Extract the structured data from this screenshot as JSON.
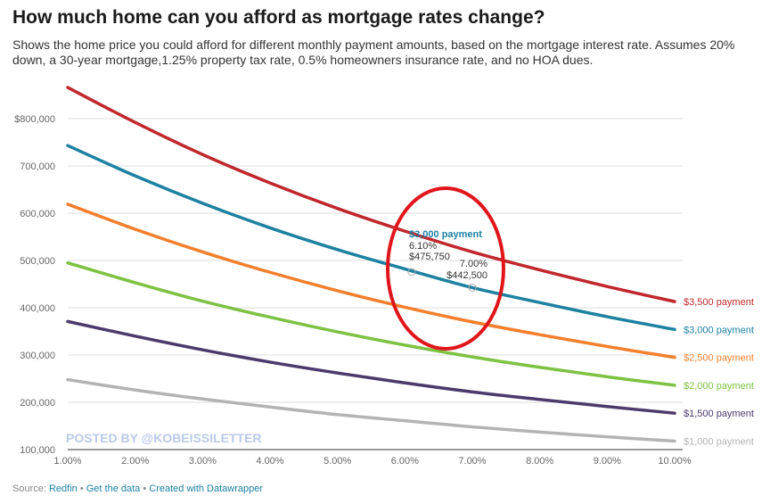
{
  "title": "How much home can you afford as mortgage rates change?",
  "subtitle": "Shows the home price you could afford for different monthly payment amounts, based on the mortgage interest rate. Assumes 20% down, a 30-year mortgage,1.25% property tax rate, 0.5% homeowners insurance rate, and no HOA dues.",
  "footer": {
    "source_label": "Source: ",
    "source": "Redfin",
    "sep1": " • ",
    "get_data": "Get the data",
    "sep2": " • ",
    "created": "Created with Datawrapper"
  },
  "watermark": "POSTED BY @KOBEISSILETTER",
  "highlight_color": "#e0161b",
  "chart_data": {
    "type": "line",
    "x": [
      1,
      2,
      3,
      4,
      5,
      6,
      7,
      8,
      9,
      10
    ],
    "x_tick_labels": [
      "1.00%",
      "2.00%",
      "3.00%",
      "4.00%",
      "5.00%",
      "6.00%",
      "7.00%",
      "8.00%",
      "9.00%",
      "10.00%"
    ],
    "xlim": [
      1,
      10
    ],
    "y_ticks": [
      100000,
      200000,
      300000,
      400000,
      500000,
      600000,
      700000,
      800000
    ],
    "y_tick_labels": [
      "100,000",
      "200,000",
      "300,000",
      "400,000",
      "500,000",
      "600,000",
      "700,000",
      "$800,000"
    ],
    "ylim": [
      100000,
      800000
    ],
    "grid": true,
    "series": [
      {
        "name": "$3,500 payment",
        "color": "#c0272d",
        "values": [
          866000,
          792000,
          724000,
          664000,
          610000,
          562000,
          518000,
          480000,
          445000,
          413000
        ]
      },
      {
        "name": "$3,000 payment",
        "color": "#1d81a2",
        "values": [
          743000,
          679000,
          621000,
          569000,
          523000,
          482000,
          442500,
          411000,
          381000,
          354000
        ]
      },
      {
        "name": "$2,500 payment",
        "color": "#f47f2c",
        "values": [
          619000,
          566000,
          518000,
          475000,
          436000,
          401000,
          370000,
          343000,
          318000,
          295000
        ]
      },
      {
        "name": "$2,000 payment",
        "color": "#7dc242",
        "values": [
          495000,
          453000,
          414000,
          380000,
          349000,
          321000,
          296000,
          274000,
          254000,
          236000
        ]
      },
      {
        "name": "$1,500 payment",
        "color": "#4b3a6b",
        "values": [
          371000,
          340000,
          311000,
          285000,
          262000,
          241000,
          222000,
          206000,
          191000,
          177000
        ]
      },
      {
        "name": "$1,000 payment",
        "color": "#b3b3b3",
        "values": [
          248000,
          226000,
          207000,
          190000,
          174000,
          161000,
          148000,
          137000,
          127000,
          118000
        ]
      }
    ],
    "annotation": {
      "title": "$3,000 payment",
      "p1_rate": "6.10%",
      "p1_value": "$475,750",
      "p2_rate": "7.00%",
      "p2_value": "$442,500",
      "p1": [
        6.1,
        475750
      ],
      "p2": [
        7.0,
        442500
      ]
    }
  }
}
